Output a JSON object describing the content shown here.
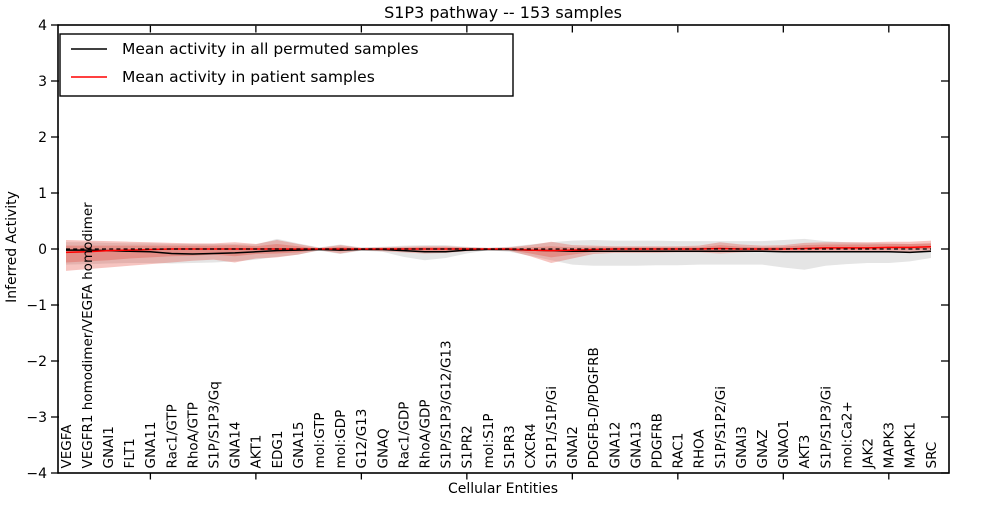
{
  "title": "S1P3 pathway -- 153 samples",
  "chart_data": {
    "type": "line",
    "title": "S1P3 pathway -- 153 samples",
    "xlabel": "Cellular Entities",
    "ylabel": "Inferred Activity",
    "ylim": [
      -4,
      4
    ],
    "yticks": [
      4,
      3,
      2,
      1,
      0,
      -1,
      -2,
      -3,
      -4
    ],
    "grid": false,
    "legend_position": "upper left",
    "zero_reference_line": "dashed black at y=0",
    "categories": [
      "VEGFA",
      "VEGFR1 homodimer/VEGFA homodimer",
      "GNAI1",
      "FLT1",
      "GNA11",
      "Rac1/GTP",
      "RhoA/GTP",
      "S1P/S1P3/Gq",
      "GNA14",
      "AKT1",
      "EDG1",
      "GNA15",
      "mol:GTP",
      "mol:GDP",
      "G12/G13",
      "GNAQ",
      "Rac1/GDP",
      "RhoA/GDP",
      "S1P/S1P3/G12/G13",
      "S1PR2",
      "mol:S1P",
      "S1PR3",
      "CXCR4",
      "S1P1/S1P/Gi",
      "GNAI2",
      "PDGFB-D/PDGFRB",
      "GNA12",
      "GNA13",
      "PDGFRB",
      "RAC1",
      "RHOA",
      "S1P/S1P2/Gi",
      "GNAI3",
      "GNAZ",
      "GNAO1",
      "AKT3",
      "S1P/S1P3/Gi",
      "mol:Ca2+",
      "JAK2",
      "MAPK3",
      "MAPK1",
      "SRC"
    ],
    "series": [
      {
        "name": "Mean activity in all permuted samples",
        "color": "#000000",
        "values": [
          -0.02,
          -0.02,
          -0.03,
          -0.04,
          -0.05,
          -0.08,
          -0.09,
          -0.08,
          -0.07,
          -0.05,
          -0.03,
          -0.02,
          -0.01,
          -0.02,
          -0.01,
          -0.01,
          -0.03,
          -0.05,
          -0.05,
          -0.02,
          -0.01,
          -0.01,
          -0.02,
          -0.03,
          -0.04,
          -0.04,
          -0.04,
          -0.04,
          -0.04,
          -0.04,
          -0.04,
          -0.04,
          -0.04,
          -0.04,
          -0.05,
          -0.05,
          -0.05,
          -0.05,
          -0.05,
          -0.05,
          -0.06,
          -0.04
        ]
      },
      {
        "name": "Mean activity in patient samples",
        "color": "#ff0000",
        "values": [
          -0.06,
          -0.05,
          -0.03,
          -0.02,
          -0.01,
          0,
          0,
          0,
          0,
          0,
          0,
          0,
          0,
          0,
          0,
          0,
          0,
          0,
          0,
          0,
          0,
          0,
          -0.02,
          -0.03,
          -0.02,
          -0.01,
          0,
          0,
          0,
          0,
          0,
          0.01,
          0,
          0,
          0,
          0.01,
          0.02,
          0.02,
          0.02,
          0.03,
          0.03,
          0.04
        ]
      }
    ],
    "bands": [
      {
        "name": "permuted-range",
        "color": "#9c9c9c",
        "opacity": 0.26,
        "lo": [
          -0.28,
          -0.27,
          -0.26,
          -0.25,
          -0.25,
          -0.26,
          -0.25,
          -0.24,
          -0.22,
          -0.19,
          -0.14,
          -0.1,
          -0.03,
          -0.09,
          -0.03,
          -0.05,
          -0.14,
          -0.2,
          -0.16,
          -0.08,
          -0.02,
          -0.05,
          -0.12,
          -0.2,
          -0.28,
          -0.3,
          -0.3,
          -0.3,
          -0.29,
          -0.29,
          -0.28,
          -0.28,
          -0.28,
          -0.28,
          -0.33,
          -0.37,
          -0.3,
          -0.27,
          -0.25,
          -0.25,
          -0.22,
          -0.16
        ],
        "hi": [
          0.12,
          0.12,
          0.11,
          0.1,
          0.1,
          0.09,
          0.09,
          0.09,
          0.09,
          0.08,
          0.18,
          0.1,
          0.03,
          0.08,
          0.03,
          0.04,
          0.06,
          0.07,
          0.07,
          0.04,
          0.02,
          0.04,
          0.08,
          0.12,
          0.15,
          0.16,
          0.15,
          0.15,
          0.15,
          0.14,
          0.14,
          0.14,
          0.14,
          0.14,
          0.16,
          0.18,
          0.14,
          0.12,
          0.11,
          0.1,
          0.09,
          0.1
        ]
      },
      {
        "name": "patient-outer",
        "color": "#e03c30",
        "opacity": 0.3,
        "lo": [
          -0.39,
          -0.36,
          -0.33,
          -0.3,
          -0.27,
          -0.24,
          -0.21,
          -0.19,
          -0.24,
          -0.17,
          -0.15,
          -0.1,
          -0.02,
          -0.08,
          -0.02,
          -0.04,
          -0.06,
          -0.08,
          -0.07,
          -0.04,
          -0.02,
          -0.03,
          -0.13,
          -0.25,
          -0.17,
          -0.09,
          -0.07,
          -0.07,
          -0.07,
          -0.06,
          -0.06,
          -0.08,
          -0.06,
          -0.05,
          -0.06,
          -0.06,
          -0.06,
          -0.06,
          -0.06,
          -0.05,
          -0.05,
          -0.04
        ],
        "hi": [
          0.16,
          0.15,
          0.14,
          0.13,
          0.12,
          0.11,
          0.1,
          0.1,
          0.12,
          0.09,
          0.16,
          0.09,
          0.02,
          0.07,
          0.02,
          0.03,
          0.04,
          0.05,
          0.05,
          0.03,
          0.02,
          0.03,
          0.07,
          0.13,
          0.07,
          0.06,
          0.05,
          0.05,
          0.05,
          0.05,
          0.06,
          0.12,
          0.08,
          0.06,
          0.07,
          0.11,
          0.12,
          0.12,
          0.12,
          0.13,
          0.13,
          0.15
        ]
      },
      {
        "name": "patient-inner",
        "color": "#e03c30",
        "opacity": 0.3,
        "lo": [
          -0.24,
          -0.22,
          -0.2,
          -0.17,
          -0.15,
          -0.13,
          -0.12,
          -0.1,
          -0.13,
          -0.09,
          -0.08,
          -0.06,
          -0.01,
          -0.04,
          -0.01,
          -0.02,
          -0.03,
          -0.04,
          -0.04,
          -0.02,
          -0.01,
          -0.02,
          -0.08,
          -0.15,
          -0.1,
          -0.05,
          -0.04,
          -0.04,
          -0.04,
          -0.03,
          -0.03,
          -0.04,
          -0.03,
          -0.03,
          -0.03,
          -0.03,
          -0.02,
          -0.02,
          -0.02,
          -0.01,
          -0.01,
          0.0
        ],
        "hi": [
          0.06,
          0.06,
          0.06,
          0.06,
          0.06,
          0.06,
          0.06,
          0.06,
          0.07,
          0.05,
          0.09,
          0.05,
          0.01,
          0.04,
          0.01,
          0.02,
          0.02,
          0.03,
          0.03,
          0.02,
          0.01,
          0.02,
          0.03,
          0.05,
          0.03,
          0.03,
          0.03,
          0.03,
          0.03,
          0.03,
          0.03,
          0.07,
          0.04,
          0.03,
          0.04,
          0.07,
          0.08,
          0.08,
          0.08,
          0.09,
          0.09,
          0.1
        ]
      }
    ]
  },
  "colors": {
    "frame": "#000000",
    "background": "#ffffff",
    "permuted_line": "#000000",
    "patient_line": "#ff0000",
    "zero_line": "#000000"
  }
}
